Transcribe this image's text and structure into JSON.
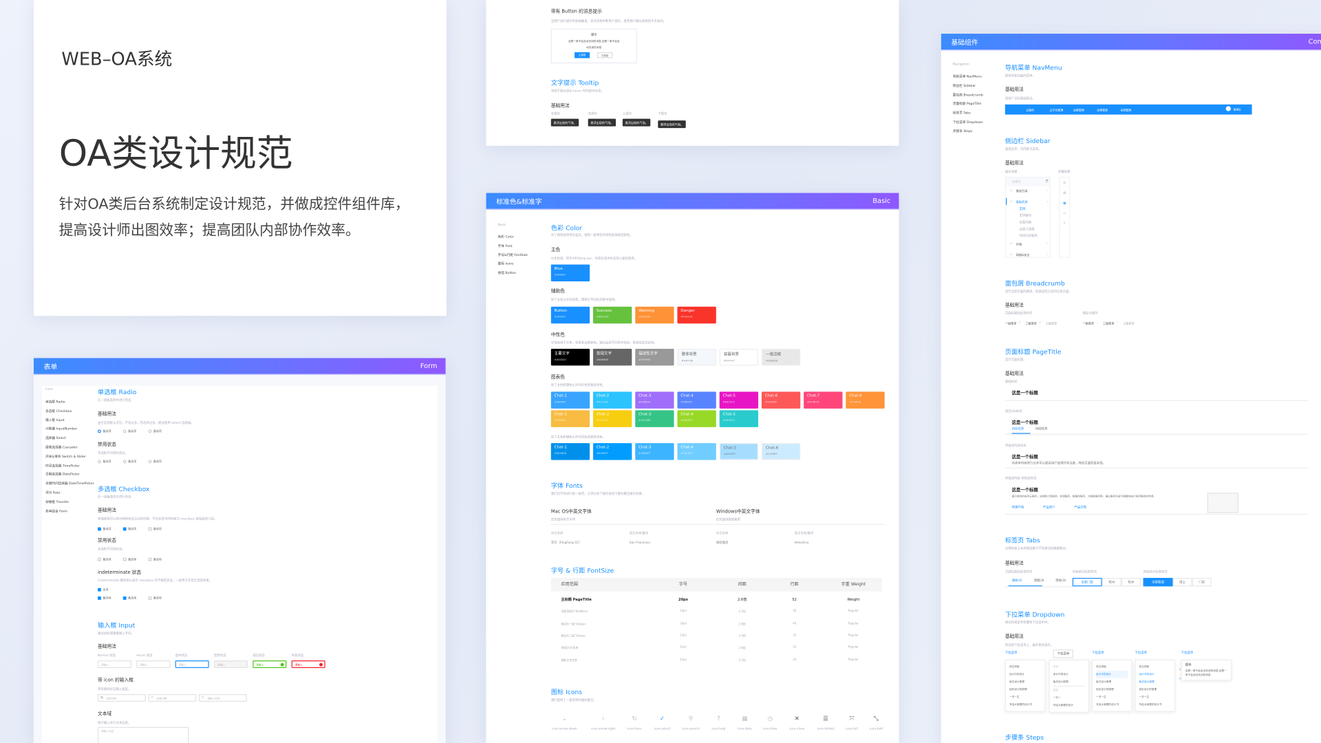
{
  "intro": {
    "system": "WEB–OA系统",
    "title": "OA类设计规范",
    "lines": [
      "针对OA类后台系统制定设计规范，并做成控件组件库，",
      "提高设计师出图效率；提高团队内部协作效率。"
    ]
  },
  "colors": {
    "primary": "#1890FF",
    "header_start": "#3B8CFF",
    "header_end": "#8F58FF"
  },
  "form": {
    "header": "表单",
    "header_en": "Form",
    "side_title": "Form",
    "side": [
      "单选框 Radio",
      "多选框 Checkbox",
      "输入框 Input",
      "计数器 InputNumber",
      "选择器 Select",
      "级联选择器 Cascader",
      "开关&滑块 Switch & Slider",
      "时间选择器 TimePicker",
      "日期选择器 DatePicker",
      "日期时间选择器 DateTimePicker",
      "评分 Rate",
      "穿梭框 Transfer",
      "表单组合 Form"
    ],
    "radio": {
      "title": "单选框  Radio",
      "desc": "在一组备选项中进行单选",
      "basic": "基础用法",
      "basic_desc": "由于选项默认可见，不宜过多，若选项过多，建议使用 Select 选择器。",
      "disabled": "禁用状态",
      "disabled_desc": "单选框不可用的状态。",
      "option": "备选项"
    },
    "checkbox": {
      "title": "多选框  Checkbox",
      "desc": "在一组备选项中进行多选",
      "basic": "基础用法",
      "basic_desc": "单独使用可以表示两种状态之间的切换，写在标签中的内容为 checkbox 按钮后的介绍。",
      "disabled": "禁用状态",
      "disabled_desc": "多选框不可用状态。",
      "indeterminate": "indeterminate 状态",
      "indeterminate_desc": "indeterminate 属性用以表示 checkbox 的不确定状态，一般用于实现全选的效果。",
      "all": "全选",
      "option": "备选项"
    },
    "input": {
      "title": "输入框  Input",
      "desc": "通过鼠标或键盘输入字符。",
      "basic": "基础用法",
      "states": [
        "Normal 状态",
        "Hover 状态",
        "选中状态",
        "禁用状态",
        "成功状态",
        "失败状态"
      ],
      "placeholder": "请输入",
      "icon_title": "带 icon 的输入框",
      "icon_desc": "带有图标标记输入类型。",
      "icon_inputs": [
        "选择日期",
        "选择日期",
        "请输入内容"
      ],
      "textarea_title": "文本域",
      "textarea_desc": "用于输入多行文本信息。",
      "textarea_placeholder": "请输入内容"
    }
  },
  "message": {
    "title": "带有 Button 的消息提示",
    "desc": "当用户进行操作时会被触发，该对话框中断用户操作，直到用户确认知晓后才可关闭。",
    "dialog_title": "提示",
    "dialog_text": [
      "这是一条不会自动关闭的消息,这是一条不会自",
      "动关闭的消息"
    ],
    "primary": "主按钮",
    "secondary": "次按钮",
    "tooltip_title": "文字提示  Tooltip",
    "tooltip_desc": "常用于展示鼠标 hover 时的提示信息。",
    "basic": "基础用法",
    "tooltips": [
      {
        "label": "左提示",
        "text": "悬浮出现的气泡。"
      },
      {
        "label": "右提示",
        "text": "悬浮出现的气泡。"
      },
      {
        "label": "上提示",
        "text": "悬浮出现的气泡。"
      },
      {
        "label": "下提示",
        "text": "悬浮出现的气泡。"
      }
    ]
  },
  "basic": {
    "header": "标准色&标准字",
    "header_en": "Basic",
    "side_title": "Basic",
    "side": [
      "色彩  Color",
      "字体  Font",
      "字号&行距  FontSize",
      "图标  Icons",
      "按钮  Button"
    ],
    "color_title": "色彩  Color",
    "color_desc": "为了避免视觉传达差异，使用一套特定的调色板来规定颜色。",
    "main_title": "主色",
    "main_desc": "VI主色调，用于APP主top bar、导航栏选中状态等小面积使用。",
    "main": [
      {
        "name": "Blue",
        "hex": "#1890FF"
      }
    ],
    "aux_title": "辅助色",
    "aux_desc": "除了主色以外的场景，需要在不同的场景中使用。",
    "aux": [
      {
        "name": "Button",
        "hex": "#1890FF"
      },
      {
        "name": "Success",
        "hex": "#66C23D"
      },
      {
        "name": "Warning",
        "hex": "#FF9236"
      },
      {
        "name": "Danger",
        "hex": "#F9342A"
      }
    ],
    "neutral_title": "中性色",
    "neutral_desc": "中性色用于文本、背景和边框颜色。通过运用不同的中性色，来表现层次结构。",
    "neutral": [
      {
        "name": "主要文字",
        "hex": "#000000"
      },
      {
        "name": "常规文字",
        "hex": "#666666"
      },
      {
        "name": "描述性文字",
        "hex": "#999999"
      },
      {
        "name": "整体背景",
        "hex": "#F4F7FB"
      },
      {
        "name": "容器背景",
        "hex": "#FFFFFF"
      },
      {
        "name": "一级边框",
        "hex": "#E8E8E8"
      }
    ],
    "chart_title": "图表色",
    "chart_desc": "除了主色和辅色以外的彩色系图表用色。",
    "chart1": [
      {
        "name": "Chat-1",
        "hex": "#38A4FF"
      },
      {
        "name": "Chat-2",
        "hex": "#2CC3FF"
      },
      {
        "name": "Chat-3",
        "hex": "#9F6EFB"
      },
      {
        "name": "Chat-4",
        "hex": "#5984FF"
      },
      {
        "name": "Chat-5",
        "hex": "#E815C5"
      },
      {
        "name": "Chat-6",
        "hex": "#FE5858"
      },
      {
        "name": "Chat-7",
        "hex": "#FE467B"
      },
      {
        "name": "Chat-8",
        "hex": "#FF9438"
      }
    ],
    "chart2": [
      {
        "name": "Chat-1",
        "hex": "#F7BC41"
      },
      {
        "name": "Chat-2",
        "hex": "#F7CE10"
      },
      {
        "name": "Chat-3",
        "hex": "#35C486"
      },
      {
        "name": "Chat-4",
        "hex": "#98D827"
      },
      {
        "name": "Chat-5",
        "hex": "#29CBCC"
      }
    ],
    "chart_desc2": "除了主色和辅色以外的同色系图表用色。",
    "chart3": [
      {
        "name": "Chat-1",
        "hex": "#0090EB"
      },
      {
        "name": "Chat-2",
        "hex": "#009DFF"
      },
      {
        "name": "Chat-3",
        "hex": "#3DB4FF"
      },
      {
        "name": "Chat-4",
        "hex": "#70CDFF"
      },
      {
        "name": "Chat-5",
        "hex": "#A6DDFF"
      },
      {
        "name": "Chat-6",
        "hex": "#CCEBFF"
      }
    ],
    "fonts_title": "字体  Fonts",
    "fonts_desc": "我们对字体进行统一规范，力求在各个操作系统下都有最佳展示效果。",
    "mac": {
      "title": "Mac OS中英文字体",
      "sub": "优先使用苹方字体",
      "cn_label": "中文字体",
      "en_label": "英文字体/数字",
      "cn": "苹方（PingFang SC）",
      "en": "San Francisco"
    },
    "win": {
      "title": "Windows中英文字体",
      "sub": "优先使用微软雅黑",
      "cn_label": "中文字体",
      "en_label": "英文字体/数字",
      "cn": "微软雅黑",
      "en": "Helvetica"
    },
    "fontsize_title": "字号 & 行距  FontSize",
    "table": {
      "headers": [
        "应用范围",
        "字号",
        "间距",
        "行距",
        "字重 Weight"
      ],
      "rows": [
        [
          "主标题 PageTitle",
          "20px",
          "2.6倍",
          "52",
          "Weight"
        ],
        [
          "顶部导航栏 NavMenu",
          "14px",
          "2.2倍",
          "30",
          "Regular"
        ],
        [
          "侧边栏一级 Sidebar",
          "14px",
          "2.8倍",
          "40",
          "Regular"
        ],
        [
          "侧边栏二级 Sidebar",
          "13px",
          "2.4倍",
          "32",
          "Regular"
        ],
        [
          "常规文字/表单",
          "12px",
          "2.6倍",
          "32",
          "Regular"
        ],
        [
          "辅助文字信息",
          "12px",
          "2.2倍",
          "24",
          "Regular"
        ]
      ]
    },
    "icons_title": "图标  Icons",
    "icons_desc": "我们提供了一套常用的图标集合。",
    "icons": [
      {
        "label": "icon-arrow-down",
        "glyph": "⌄"
      },
      {
        "label": "icon-arrow-right",
        "glyph": "›"
      },
      {
        "label": "icon-fress",
        "glyph": "↻"
      },
      {
        "label": "icon-select",
        "glyph": "✓"
      },
      {
        "label": "icon-search",
        "glyph": "⚲"
      },
      {
        "label": "icon-help",
        "glyph": "?"
      },
      {
        "label": "icon-date",
        "glyph": "▦"
      },
      {
        "label": "icon-time",
        "glyph": "◷"
      },
      {
        "label": "icon-close",
        "glyph": "✕"
      },
      {
        "label": "icon-folded",
        "glyph": "☰"
      },
      {
        "label": "icon-full",
        "glyph": "⤧"
      },
      {
        "label": "icon-half",
        "glyph": "⤡"
      }
    ]
  },
  "components": {
    "header": "基础组件",
    "header_en": "Com",
    "side_title": "Navigation",
    "side": [
      "导航菜单  NavMenu",
      "侧边栏  Sidebar",
      "面包屑  Breadcrumb",
      "页面标题  PageTitle",
      "标签页  Tabs",
      "下拉菜单  Dropdown",
      "步骤条  Steps"
    ],
    "nav_title": "导航菜单  NavMenu",
    "nav_desc": "提供导航功能的菜单。",
    "basic": "基础用法",
    "nav_basic_desc": "适用广泛的基础用法。",
    "nav_items": [
      "云服务",
      "云平台管理",
      "运维管理",
      "运营管理",
      "系统管理"
    ],
    "nav_user": "管理员",
    "sidebar_title": "侧边栏  Sidebar",
    "sidebar_desc": "垂直菜单，可内嵌子菜单。",
    "expanded": "展开效果",
    "collapsed": "折叠效果",
    "sidebar_search": "云服务",
    "sidebar_items": [
      "服务目录",
      "基础资源",
      "存储",
      "网络&安全"
    ],
    "sidebar_sub": [
      "实例",
      "实例备份",
      "负载均衡",
      "自定义镜像",
      "时间同步服务"
    ],
    "bc_title": "面包屑  Breadcrumb",
    "bc_desc": "显示当前页面的路径，快速返回之前的任意页面。",
    "bc_label1": "页面标题处标签样式",
    "bc_label2": "图标分隔符",
    "bc_items": [
      "一级菜单",
      "二级菜单",
      "三级菜单"
    ],
    "pt_title": "页面标题  PageTitle",
    "pt_desc": "显示页面标题。",
    "pt_labels": [
      "基础样式",
      "组合tab样式",
      "带描述内容样式",
      "带描述内容-带按钮样式"
    ],
    "pt_heading": "这是一个标题",
    "pt_tabs": [
      "待办任务",
      "待阅任务"
    ],
    "pt_text": "待表单内容进行分步可以提高用户处理的专注度，降低页面的复杂性。",
    "pt_long": "展示提供的各项云服务，如弹性计算服务、存储服务、数据库服务、大数据服务等，通过服务目录可便捷地进行各项服务的申请。",
    "pt_links": [
      "快速开始",
      "产品简介",
      "产品文档"
    ],
    "tabs_title": "标签页  Tabs",
    "tabs_desc": "分隔内容上有关联但属于不同类别的数据集合。",
    "tabs_labels": [
      "页面标题处标签样式",
      "内容部分标签样式",
      "内容部分标签样式"
    ],
    "tabs1": [
      "通知(4)",
      "消息(3)",
      "待办(3)"
    ],
    "tabs2": [
      "全部门店",
      "杭州",
      "杭州"
    ],
    "tabs3": [
      "全部渠道",
      "线上",
      "门店"
    ],
    "dd_title": "下拉菜单  Dropdown",
    "dd_desc": "将动作或菜单折叠到下拉菜单中。",
    "dd_basic_desc": "移动到下拉菜单上，展开更多操作。",
    "dd_trigger": "下拉菜单",
    "dd_items": [
      "西文排版",
      "设计中的设计",
      "版式设计原理",
      "色彩设计的原理",
      "一字一生",
      "写给大家看的设计书"
    ],
    "dd_group": {
      "g1": "文字",
      "a": [
        "设计中的设计",
        "版式设计原理"
      ],
      "g2": "应用",
      "b": [
        "一字一",
        "写给大家看的设计"
      ]
    },
    "dd_tip_title": "提示",
    "dd_tip_text": "这是一条不会自动关闭的消息,这是一条不会自动关闭的消息",
    "steps_title": "步骤条  Steps"
  }
}
